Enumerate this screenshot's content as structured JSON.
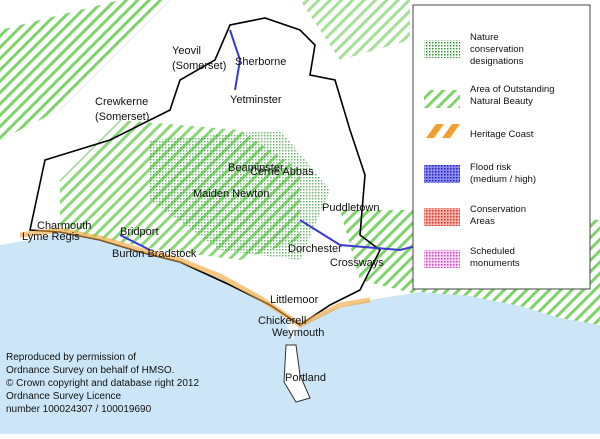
{
  "places": [
    {
      "lines": [
        "Yeovil",
        "(Somerset)"
      ]
    },
    {
      "lines": [
        "Sherborne"
      ]
    },
    {
      "lines": [
        "Crewkerne",
        "(Somerset)"
      ]
    },
    {
      "lines": [
        "Yetminster"
      ]
    },
    {
      "lines": [
        "Beaminster"
      ]
    },
    {
      "lines": [
        "Cerne Abbas"
      ]
    },
    {
      "lines": [
        "Maiden Newton"
      ]
    },
    {
      "lines": [
        "Puddletown"
      ]
    },
    {
      "lines": [
        "Charmouth"
      ]
    },
    {
      "lines": [
        "Lyme Regis"
      ]
    },
    {
      "lines": [
        "Bridport"
      ]
    },
    {
      "lines": [
        "Burton Bradstock"
      ]
    },
    {
      "lines": [
        "Dorchester"
      ]
    },
    {
      "lines": [
        "Crossways"
      ]
    },
    {
      "lines": [
        "Littlemoor"
      ]
    },
    {
      "lines": [
        "Chickerell"
      ]
    },
    {
      "lines": [
        "Weymouth"
      ]
    },
    {
      "lines": [
        "Portland"
      ]
    }
  ],
  "legend": [
    {
      "lines": [
        "Nature",
        "conservation",
        "designations"
      ]
    },
    {
      "lines": [
        "Area of Outstanding",
        "Natural Beauty"
      ]
    },
    {
      "lines": [
        "Heritage Coast"
      ]
    },
    {
      "lines": [
        "Flood risk",
        "(medium / high)"
      ]
    },
    {
      "lines": [
        "Conservation",
        "Areas"
      ]
    },
    {
      "lines": [
        "Scheduled",
        "monuments"
      ]
    }
  ],
  "credit": [
    "Reproduced by permission of",
    "Ordnance Survey on behalf of HMSO.",
    "© Crown copyright and database right 2012",
    "Ordnance Survey Licence",
    "number 100024307 / 100019690"
  ]
}
